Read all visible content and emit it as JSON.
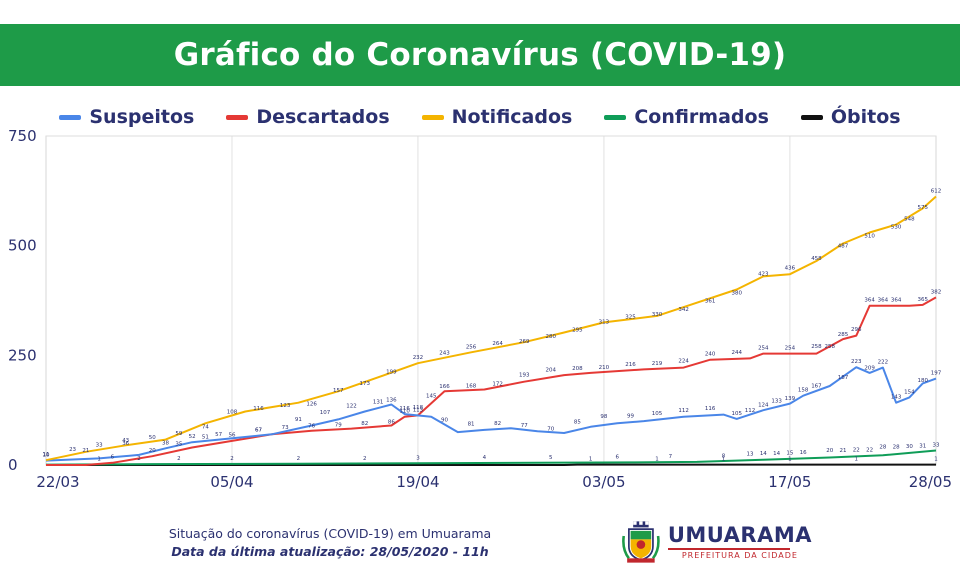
{
  "title": "Gráfico do Coronavírus (COVID-19)",
  "footer": {
    "line1": "Situação do coronavírus (COVID-19) em Umuarama",
    "line2": "Data da última atualização: 28/05/2020 - 11h"
  },
  "logo": {
    "name": "UMUARAMA",
    "subtitle": "PREFEITURA DA CIDADE"
  },
  "chart_data": {
    "type": "line",
    "x_start": "22/03",
    "x_end": "28/05",
    "x_tick_labels": [
      "22/03",
      "05/04",
      "19/04",
      "03/05",
      "17/05",
      "28/05"
    ],
    "y_ticks": [
      0,
      250,
      500,
      750
    ],
    "ylim": [
      0,
      750
    ],
    "grid": "vertical",
    "legend_position": "top",
    "series": [
      {
        "name": "Suspeitos",
        "color": "#4a86e8",
        "label_color": "#2b3170",
        "points": [
          [
            "22/03",
            10
          ],
          [
            "26/03",
            15
          ],
          [
            "29/03",
            23
          ],
          [
            "31/03",
            38
          ],
          [
            "02/04",
            52
          ],
          [
            "04/04",
            58
          ],
          [
            "08/04",
            70
          ],
          [
            "11/04",
            90
          ],
          [
            "13/04",
            104
          ],
          [
            "15/04",
            122
          ],
          [
            "17/04",
            138
          ],
          [
            "18/04",
            116
          ],
          [
            "20/04",
            110
          ],
          [
            "22/04",
            75
          ],
          [
            "24/04",
            80
          ],
          [
            "26/04",
            84
          ],
          [
            "28/04",
            77
          ],
          [
            "30/04",
            73
          ],
          [
            "02/05",
            87
          ],
          [
            "04/05",
            95
          ],
          [
            "06/05",
            100
          ],
          [
            "09/05",
            110
          ],
          [
            "12/05",
            115
          ],
          [
            "13/05",
            105
          ],
          [
            "15/05",
            125
          ],
          [
            "17/05",
            140
          ],
          [
            "18/05",
            158
          ],
          [
            "20/05",
            180
          ],
          [
            "22/05",
            223
          ],
          [
            "23/05",
            210
          ],
          [
            "24/05",
            222
          ],
          [
            "25/05",
            142
          ],
          [
            "26/05",
            154
          ],
          [
            "27/05",
            186
          ],
          [
            "28/05",
            197
          ]
        ],
        "labels": [
          [
            "22/03",
            10
          ],
          [
            "25/03",
            21
          ],
          [
            "28/03",
            36
          ],
          [
            "31/03",
            38
          ],
          [
            "02/04",
            52
          ],
          [
            "04/04",
            57
          ],
          [
            "07/04",
            67
          ],
          [
            "10/04",
            91
          ],
          [
            "12/04",
            107
          ],
          [
            "14/04",
            122
          ],
          [
            "16/04",
            131
          ],
          [
            "17/04",
            136
          ],
          [
            "18/04",
            116
          ],
          [
            "19/04",
            118
          ],
          [
            "21/04",
            90
          ],
          [
            "23/04",
            81
          ],
          [
            "25/04",
            82
          ],
          [
            "27/04",
            77
          ],
          [
            "29/04",
            70
          ],
          [
            "01/05",
            85
          ],
          [
            "03/05",
            98
          ],
          [
            "05/05",
            99
          ],
          [
            "07/05",
            105
          ],
          [
            "09/05",
            112
          ],
          [
            "11/05",
            116
          ],
          [
            "13/05",
            105
          ],
          [
            "14/05",
            112
          ],
          [
            "15/05",
            124
          ],
          [
            "16/05",
            133
          ],
          [
            "17/05",
            139
          ],
          [
            "18/05",
            158
          ],
          [
            "19/05",
            167
          ],
          [
            "21/05",
            187
          ],
          [
            "22/05",
            223
          ],
          [
            "23/05",
            209
          ],
          [
            "24/05",
            222
          ],
          [
            "25/05",
            143
          ],
          [
            "26/05",
            154
          ],
          [
            "27/05",
            180
          ],
          [
            "28/05",
            197
          ]
        ]
      },
      {
        "name": "Descartados",
        "color": "#e53935",
        "label_color": "#2b3170",
        "points": [
          [
            "22/03",
            0
          ],
          [
            "25/03",
            0
          ],
          [
            "27/03",
            5
          ],
          [
            "30/03",
            20
          ],
          [
            "02/04",
            40
          ],
          [
            "05/04",
            55
          ],
          [
            "08/04",
            70
          ],
          [
            "11/04",
            78
          ],
          [
            "14/04",
            83
          ],
          [
            "17/04",
            90
          ],
          [
            "18/04",
            110
          ],
          [
            "19/04",
            113
          ],
          [
            "21/04",
            168
          ],
          [
            "24/04",
            172
          ],
          [
            "27/04",
            190
          ],
          [
            "30/04",
            205
          ],
          [
            "02/05",
            210
          ],
          [
            "06/05",
            218
          ],
          [
            "09/05",
            222
          ],
          [
            "11/05",
            240
          ],
          [
            "14/05",
            243
          ],
          [
            "15/05",
            254
          ],
          [
            "19/05",
            254
          ],
          [
            "21/05",
            287
          ],
          [
            "22/05",
            295
          ],
          [
            "23/05",
            363
          ],
          [
            "26/05",
            363
          ],
          [
            "27/05",
            365
          ],
          [
            "28/05",
            382
          ]
        ],
        "labels": [
          [
            "27/03",
            6
          ],
          [
            "30/03",
            20
          ],
          [
            "01/04",
            35
          ],
          [
            "03/04",
            51
          ],
          [
            "05/04",
            56
          ],
          [
            "07/04",
            67
          ],
          [
            "09/04",
            73
          ],
          [
            "11/04",
            76
          ],
          [
            "13/04",
            79
          ],
          [
            "15/04",
            82
          ],
          [
            "17/04",
            86
          ],
          [
            "18/04",
            110
          ],
          [
            "19/04",
            113
          ],
          [
            "20/04",
            145
          ],
          [
            "21/04",
            166
          ],
          [
            "23/04",
            168
          ],
          [
            "25/04",
            172
          ],
          [
            "27/04",
            193
          ],
          [
            "29/04",
            204
          ],
          [
            "01/05",
            208
          ],
          [
            "03/05",
            210
          ],
          [
            "05/05",
            216
          ],
          [
            "07/05",
            219
          ],
          [
            "09/05",
            224
          ],
          [
            "11/05",
            240
          ],
          [
            "13/05",
            244
          ],
          [
            "15/05",
            254
          ],
          [
            "17/05",
            254
          ],
          [
            "19/05",
            258
          ],
          [
            "20/05",
            258
          ],
          [
            "21/05",
            285
          ],
          [
            "22/05",
            296
          ],
          [
            "23/05",
            364
          ],
          [
            "24/05",
            364
          ],
          [
            "25/05",
            364
          ],
          [
            "27/05",
            365
          ],
          [
            "28/05",
            382
          ]
        ]
      },
      {
        "name": "Notificados",
        "color": "#f4b400",
        "label_color": "#2b3170",
        "points": [
          [
            "22/03",
            11
          ],
          [
            "25/03",
            30
          ],
          [
            "28/03",
            45
          ],
          [
            "31/03",
            58
          ],
          [
            "03/04",
            95
          ],
          [
            "06/04",
            122
          ],
          [
            "10/04",
            142
          ],
          [
            "13/04",
            168
          ],
          [
            "16/04",
            200
          ],
          [
            "19/04",
            232
          ],
          [
            "23/04",
            257
          ],
          [
            "27/04",
            280
          ],
          [
            "30/04",
            302
          ],
          [
            "03/05",
            325
          ],
          [
            "07/05",
            340
          ],
          [
            "10/05",
            370
          ],
          [
            "13/05",
            400
          ],
          [
            "15/05",
            430
          ],
          [
            "17/05",
            435
          ],
          [
            "19/05",
            465
          ],
          [
            "21/05",
            505
          ],
          [
            "23/05",
            530
          ],
          [
            "25/05",
            548
          ],
          [
            "27/05",
            585
          ],
          [
            "28/05",
            612
          ]
        ],
        "labels": [
          [
            "22/03",
            11
          ],
          [
            "24/03",
            23
          ],
          [
            "26/03",
            33
          ],
          [
            "28/03",
            43
          ],
          [
            "30/03",
            50
          ],
          [
            "01/04",
            59
          ],
          [
            "03/04",
            74
          ],
          [
            "05/04",
            108
          ],
          [
            "07/04",
            116
          ],
          [
            "09/04",
            123
          ],
          [
            "11/04",
            126
          ],
          [
            "13/04",
            157
          ],
          [
            "15/04",
            173
          ],
          [
            "17/04",
            199
          ],
          [
            "19/04",
            232
          ],
          [
            "21/04",
            243
          ],
          [
            "23/04",
            256
          ],
          [
            "25/04",
            264
          ],
          [
            "27/04",
            269
          ],
          [
            "29/04",
            280
          ],
          [
            "01/05",
            295
          ],
          [
            "03/05",
            313
          ],
          [
            "05/05",
            325
          ],
          [
            "07/05",
            330
          ],
          [
            "09/05",
            342
          ],
          [
            "11/05",
            361
          ],
          [
            "13/05",
            380
          ],
          [
            "15/05",
            423
          ],
          [
            "17/05",
            436
          ],
          [
            "19/05",
            458
          ],
          [
            "21/05",
            487
          ],
          [
            "23/05",
            510
          ],
          [
            "25/05",
            530
          ],
          [
            "26/05",
            548
          ],
          [
            "27/05",
            575
          ],
          [
            "28/05",
            612
          ]
        ]
      },
      {
        "name": "Confirmados",
        "color": "#0f9d58",
        "label_color": "#2b3170",
        "points": [
          [
            "22/03",
            1
          ],
          [
            "30/03",
            2
          ],
          [
            "10/04",
            3
          ],
          [
            "19/04",
            4
          ],
          [
            "28/04",
            5
          ],
          [
            "05/05",
            6
          ],
          [
            "10/05",
            7
          ],
          [
            "15/05",
            12
          ],
          [
            "20/05",
            17
          ],
          [
            "24/05",
            22
          ],
          [
            "28/05",
            33
          ]
        ],
        "labels": [
          [
            "26/03",
            1
          ],
          [
            "29/03",
            2
          ],
          [
            "01/04",
            2
          ],
          [
            "05/04",
            2
          ],
          [
            "10/04",
            2
          ],
          [
            "15/04",
            2
          ],
          [
            "19/04",
            3
          ],
          [
            "24/04",
            4
          ],
          [
            "29/04",
            5
          ],
          [
            "04/05",
            6
          ],
          [
            "08/05",
            7
          ],
          [
            "12/05",
            8
          ],
          [
            "14/05",
            13
          ],
          [
            "15/05",
            14
          ],
          [
            "16/05",
            14
          ],
          [
            "17/05",
            15
          ],
          [
            "18/05",
            16
          ],
          [
            "20/05",
            20
          ],
          [
            "21/05",
            21
          ],
          [
            "22/05",
            22
          ],
          [
            "23/05",
            22
          ],
          [
            "24/05",
            28
          ],
          [
            "25/05",
            28
          ],
          [
            "26/05",
            30
          ],
          [
            "27/05",
            31
          ],
          [
            "28/05",
            33
          ]
        ]
      },
      {
        "name": "Óbitos",
        "color": "#111111",
        "label_color": "#2b3170",
        "points": [
          [
            "22/03",
            0
          ],
          [
            "30/04",
            0
          ],
          [
            "01/05",
            1
          ],
          [
            "28/05",
            1
          ]
        ],
        "labels": [
          [
            "02/05",
            1
          ],
          [
            "07/05",
            1
          ],
          [
            "12/05",
            1
          ],
          [
            "17/05",
            1
          ],
          [
            "22/05",
            1
          ],
          [
            "28/05",
            1
          ]
        ]
      }
    ]
  }
}
